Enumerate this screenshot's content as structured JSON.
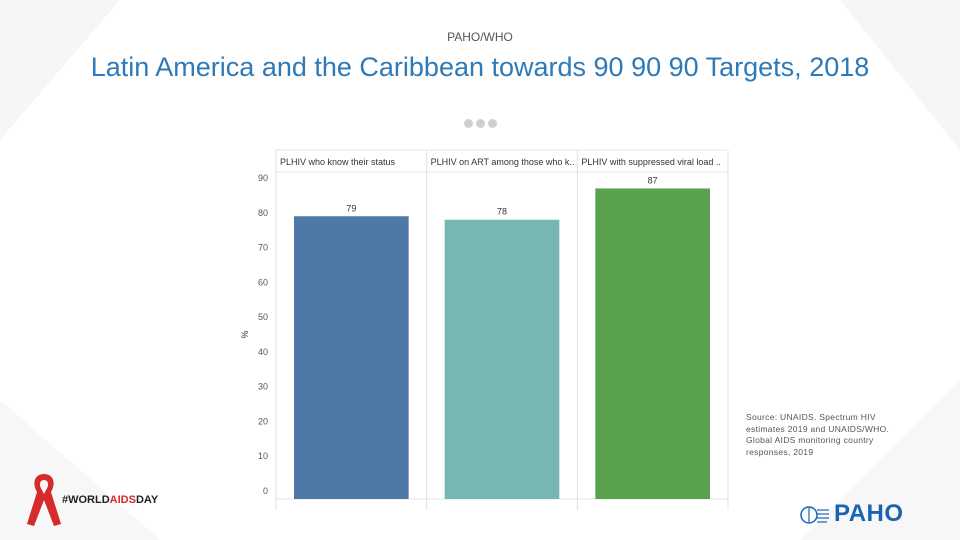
{
  "header": {
    "org_label": "PAHO/WHO",
    "title": "Latin America and the Caribbean towards 90 90 90 Targets, 2018"
  },
  "chart_data": {
    "type": "bar",
    "categories": [
      "PLHIV who know their status",
      "PLHIV on ART among those who k..",
      "PLHIV with suppressed viral load .."
    ],
    "values": [
      79,
      78,
      87
    ],
    "colors": [
      "#4e79a7",
      "#76b7b2",
      "#59a14f"
    ],
    "ylabel": "%",
    "ylim": [
      0,
      90
    ],
    "yticks": [
      0,
      10,
      20,
      30,
      40,
      50,
      60,
      70,
      80,
      90
    ],
    "grid": false
  },
  "source_note": "Source: UNAIDS. Spectrum HIV estimates 2019 and UNAIDS/WHO. Global AIDS monitoring country responses, 2019",
  "footer": {
    "hashtag_prefix": "#WORLD",
    "hashtag_highlight": "AIDS",
    "hashtag_suffix": "DAY",
    "org_logo_text": "PAHO"
  }
}
